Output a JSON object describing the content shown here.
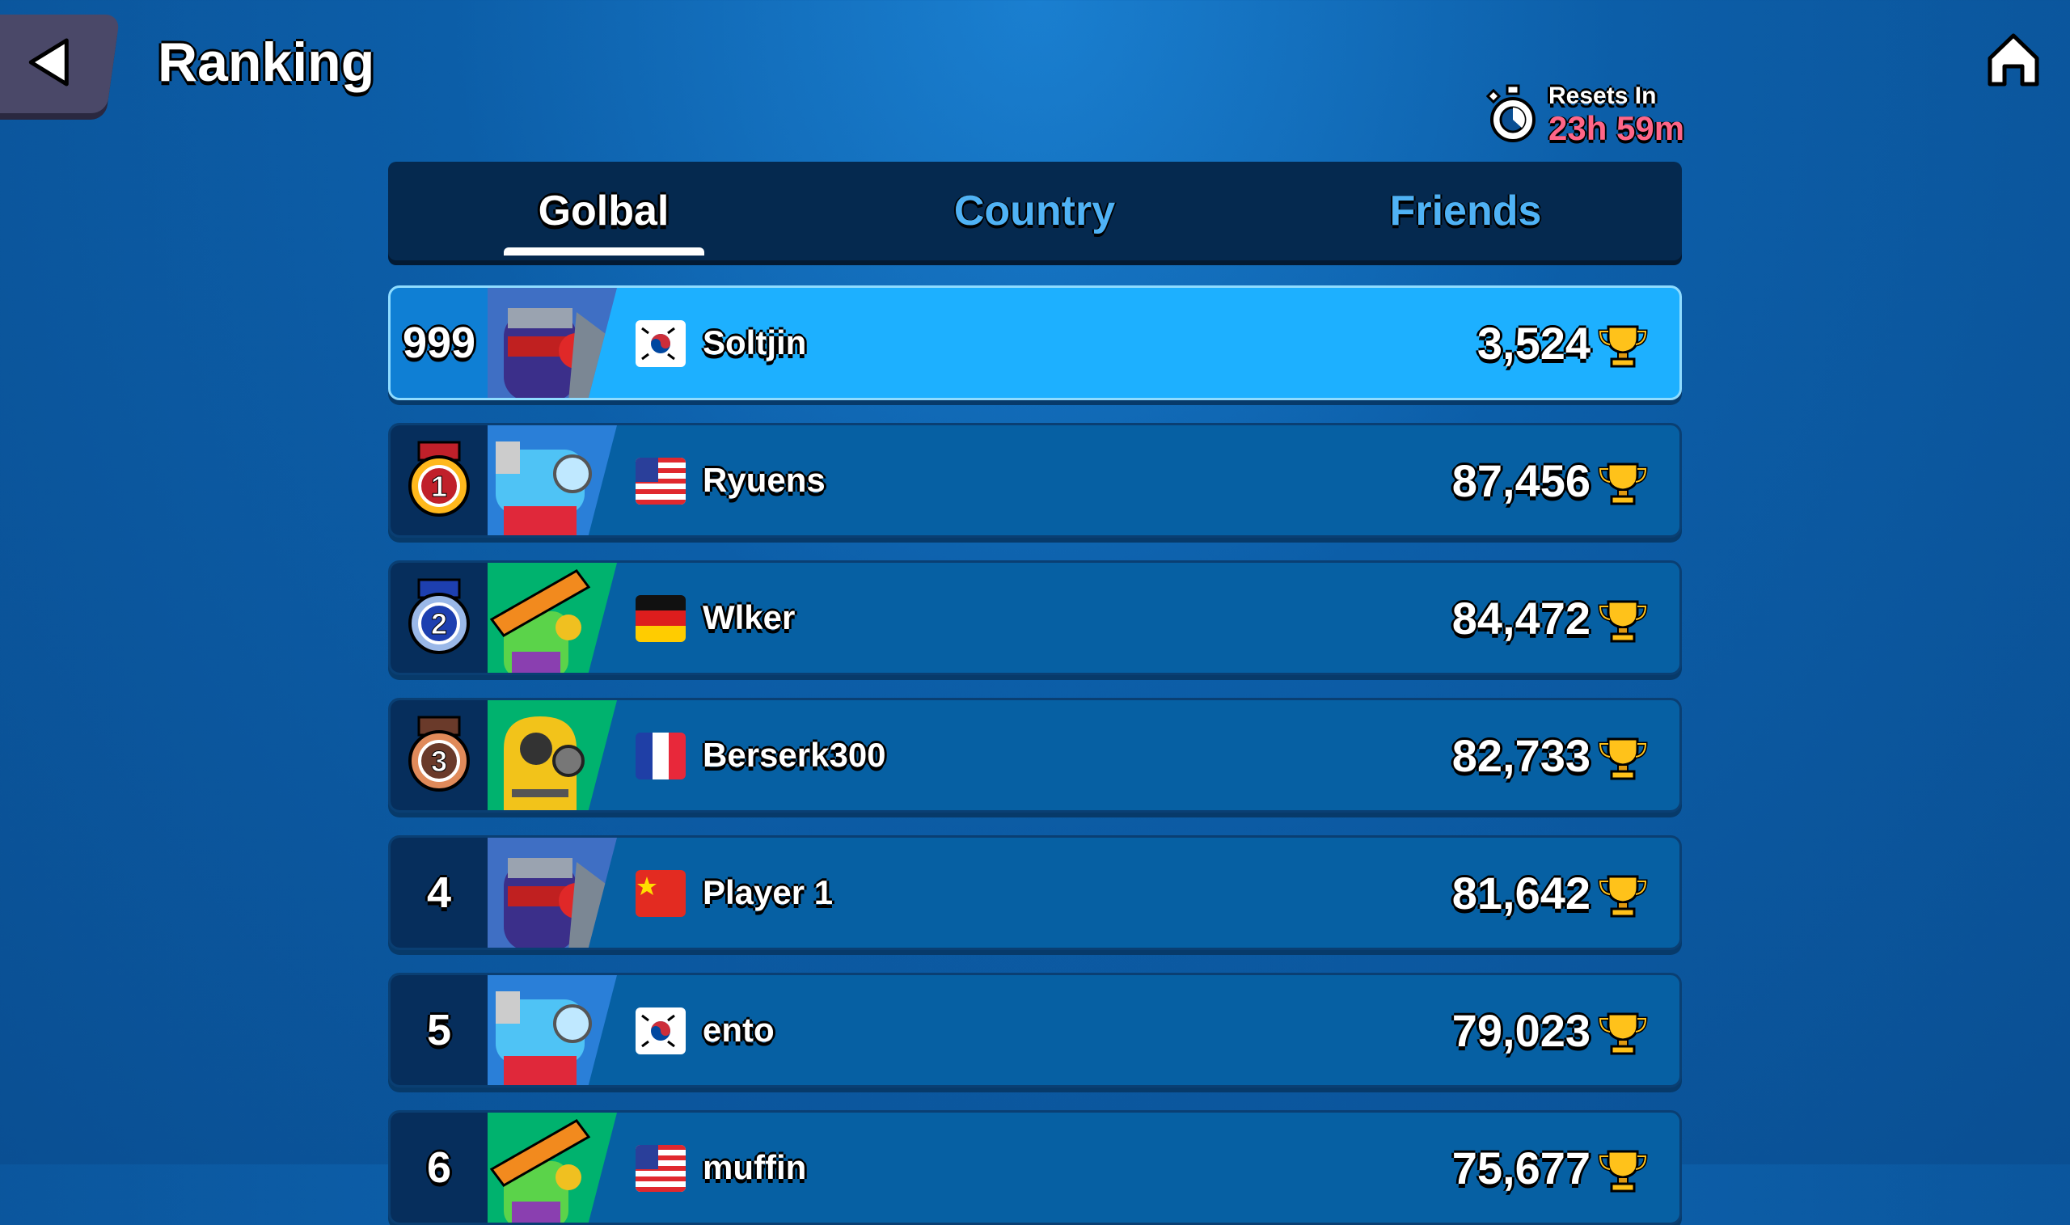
{
  "header": {
    "title": "Ranking",
    "reset_label": "Resets In",
    "reset_value": "23h 59m"
  },
  "tabs": [
    {
      "label": "Golbal",
      "active": true
    },
    {
      "label": "Country",
      "active": false
    },
    {
      "label": "Friends",
      "active": false
    }
  ],
  "colors": {
    "accent_highlight": "#1db0ff",
    "row": "#0660a3",
    "timer_text": "#ff6688",
    "tab_inactive": "#4fb2f5"
  },
  "rows": [
    {
      "rank": "999",
      "name": "Soltjin",
      "country": "south-korea",
      "score": "3,524",
      "avatar": "knight-robot",
      "highlight": true
    },
    {
      "rank": "1",
      "name": "Ryuens",
      "country": "usa",
      "score": "87,456",
      "avatar": "blue-robot",
      "medal": "gold"
    },
    {
      "rank": "2",
      "name": "Wlker",
      "country": "germany",
      "score": "84,472",
      "avatar": "cactus-sombrero",
      "medal": "silver"
    },
    {
      "rank": "3",
      "name": "Berserk300",
      "country": "france",
      "score": "82,733",
      "avatar": "hazmat",
      "medal": "bronze"
    },
    {
      "rank": "4",
      "name": "Player 1",
      "country": "china",
      "score": "81,642",
      "avatar": "knight-robot"
    },
    {
      "rank": "5",
      "name": "ento",
      "country": "south-korea",
      "score": "79,023",
      "avatar": "blue-robot"
    },
    {
      "rank": "6",
      "name": "muffin",
      "country": "usa",
      "score": "75,677",
      "avatar": "cactus-sombrero"
    }
  ]
}
